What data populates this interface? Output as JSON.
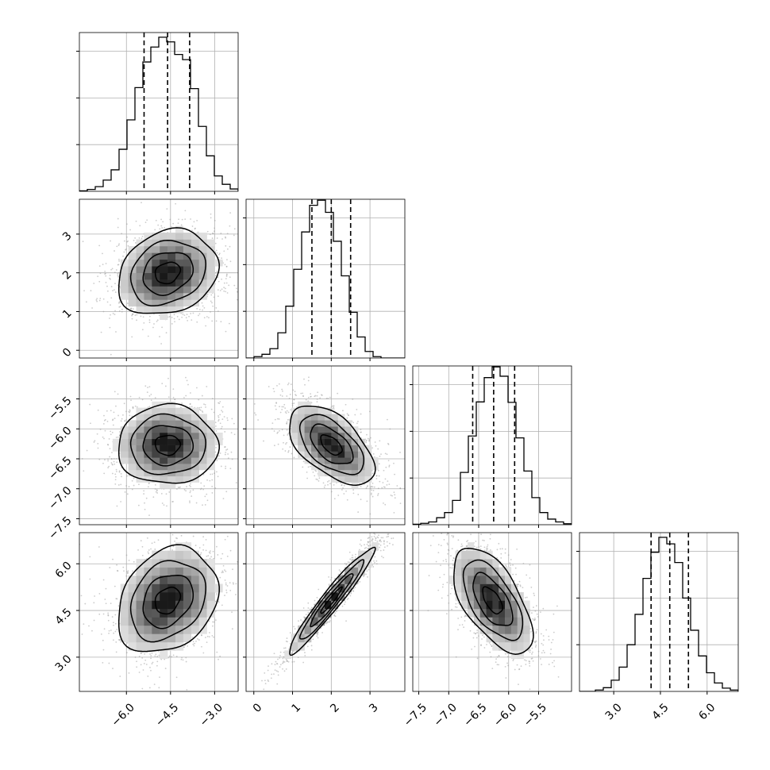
{
  "chart_data": {
    "type": "corner",
    "grid": true,
    "colors": {
      "line": "#000000",
      "grid": "#b0b0b0",
      "scatter": "#9a9a9a",
      "background": "#ffffff"
    },
    "variables": [
      {
        "range": [
          -7.6,
          -2.2
        ],
        "ticks": [
          -6.0,
          -4.5,
          -3.0
        ],
        "tick_labels": [
          "−6.0",
          "−4.5",
          "−3.0"
        ],
        "quantiles": [
          -5.4,
          -4.6,
          -3.85
        ]
      },
      {
        "range": [
          -0.2,
          3.9
        ],
        "ticks": [
          0,
          1,
          2,
          3
        ],
        "tick_labels": [
          "0",
          "1",
          "2",
          "3"
        ],
        "quantiles": [
          1.5,
          2.0,
          2.5
        ]
      },
      {
        "range": [
          -7.6,
          -4.95
        ],
        "ticks": [
          -7.5,
          -7.0,
          -6.5,
          -6.0,
          -5.5
        ],
        "tick_labels": [
          "−7.5",
          "−7.0",
          "−6.5",
          "−6.0",
          "−5.5"
        ],
        "quantiles": [
          -6.6,
          -6.25,
          -5.9
        ]
      },
      {
        "range": [
          1.9,
          7.0
        ],
        "ticks": [
          3.0,
          4.5,
          6.0
        ],
        "tick_labels": [
          "3.0",
          "4.5",
          "6.0"
        ],
        "quantiles": [
          4.2,
          4.8,
          5.4
        ]
      }
    ],
    "histograms": [
      {
        "variable": 0,
        "bin_edges": [
          -7.6,
          -7.33,
          -7.06,
          -6.79,
          -6.52,
          -6.25,
          -5.98,
          -5.71,
          -5.44,
          -5.17,
          -4.9,
          -4.63,
          -4.36,
          -4.09,
          -3.82,
          -3.55,
          -3.28,
          -3.01,
          -2.74,
          -2.47,
          -2.2
        ],
        "counts": [
          1,
          4,
          10,
          24,
          46,
          90,
          153,
          222,
          277,
          309,
          330,
          320,
          293,
          282,
          220,
          139,
          76,
          33,
          15,
          5
        ],
        "y_max": 340,
        "y_ticks": [
          100,
          200,
          300
        ]
      },
      {
        "variable": 1,
        "bin_edges": [
          -0.2,
          0.005,
          0.21,
          0.415,
          0.62,
          0.825,
          1.03,
          1.235,
          1.44,
          1.645,
          1.85,
          2.055,
          2.26,
          2.465,
          2.67,
          2.875,
          3.08,
          3.285,
          3.49,
          3.695,
          3.9
        ],
        "counts": [
          0,
          3,
          8,
          20,
          54,
          111,
          190,
          270,
          327,
          338,
          312,
          250,
          176,
          98,
          45,
          14,
          3,
          0,
          0,
          0
        ],
        "y_max": 340,
        "y_ticks": [
          100,
          200,
          300
        ]
      },
      {
        "variable": 2,
        "bin_edges": [
          -7.6,
          -7.4675,
          -7.335,
          -7.2025,
          -7.07,
          -6.9375,
          -6.805,
          -6.6725,
          -6.54,
          -6.4075,
          -6.275,
          -6.1425,
          -6.01,
          -5.8775,
          -5.745,
          -5.6125,
          -5.48,
          -5.3475,
          -5.215,
          -5.0825,
          -4.95
        ],
        "counts": [
          1,
          3,
          6,
          15,
          26,
          52,
          112,
          190,
          263,
          315,
          338,
          318,
          262,
          186,
          115,
          58,
          26,
          12,
          6,
          2
        ],
        "y_max": 340,
        "y_ticks": [
          100,
          200,
          300
        ]
      },
      {
        "variable": 3,
        "bin_edges": [
          1.9,
          2.155,
          2.41,
          2.665,
          2.92,
          3.175,
          3.43,
          3.685,
          3.94,
          4.195,
          4.45,
          4.705,
          4.96,
          5.215,
          5.47,
          5.725,
          5.98,
          6.235,
          6.49,
          6.745,
          7.0
        ],
        "counts": [
          0,
          0,
          3,
          8,
          24,
          52,
          100,
          165,
          242,
          298,
          330,
          316,
          276,
          200,
          131,
          76,
          40,
          18,
          7,
          3
        ],
        "y_max": 340,
        "y_ticks": [
          100,
          200,
          300
        ]
      }
    ],
    "joint": [
      {
        "x_var": 0,
        "y_var": 1,
        "mean": [
          -4.6,
          2.0
        ],
        "std": [
          0.85,
          0.55
        ],
        "corr": 0.2
      },
      {
        "x_var": 0,
        "y_var": 2,
        "mean": [
          -4.6,
          -6.27
        ],
        "std": [
          0.85,
          0.33
        ],
        "corr": 0.0
      },
      {
        "x_var": 1,
        "y_var": 2,
        "mean": [
          2.0,
          -6.27
        ],
        "std": [
          0.55,
          0.33
        ],
        "corr": -0.55
      },
      {
        "x_var": 0,
        "y_var": 3,
        "mean": [
          -4.6,
          4.82
        ],
        "std": [
          0.85,
          0.85
        ],
        "corr": 0.25
      },
      {
        "x_var": 1,
        "y_var": 3,
        "mean": [
          2.0,
          4.82
        ],
        "std": [
          0.55,
          0.85
        ],
        "corr": 0.96
      },
      {
        "x_var": 2,
        "y_var": 3,
        "mean": [
          -6.27,
          4.82
        ],
        "std": [
          0.33,
          0.85
        ],
        "corr": -0.6
      }
    ],
    "contour_levels_sigma": [
      0.5,
      1.0,
      1.5,
      2.0
    ]
  }
}
